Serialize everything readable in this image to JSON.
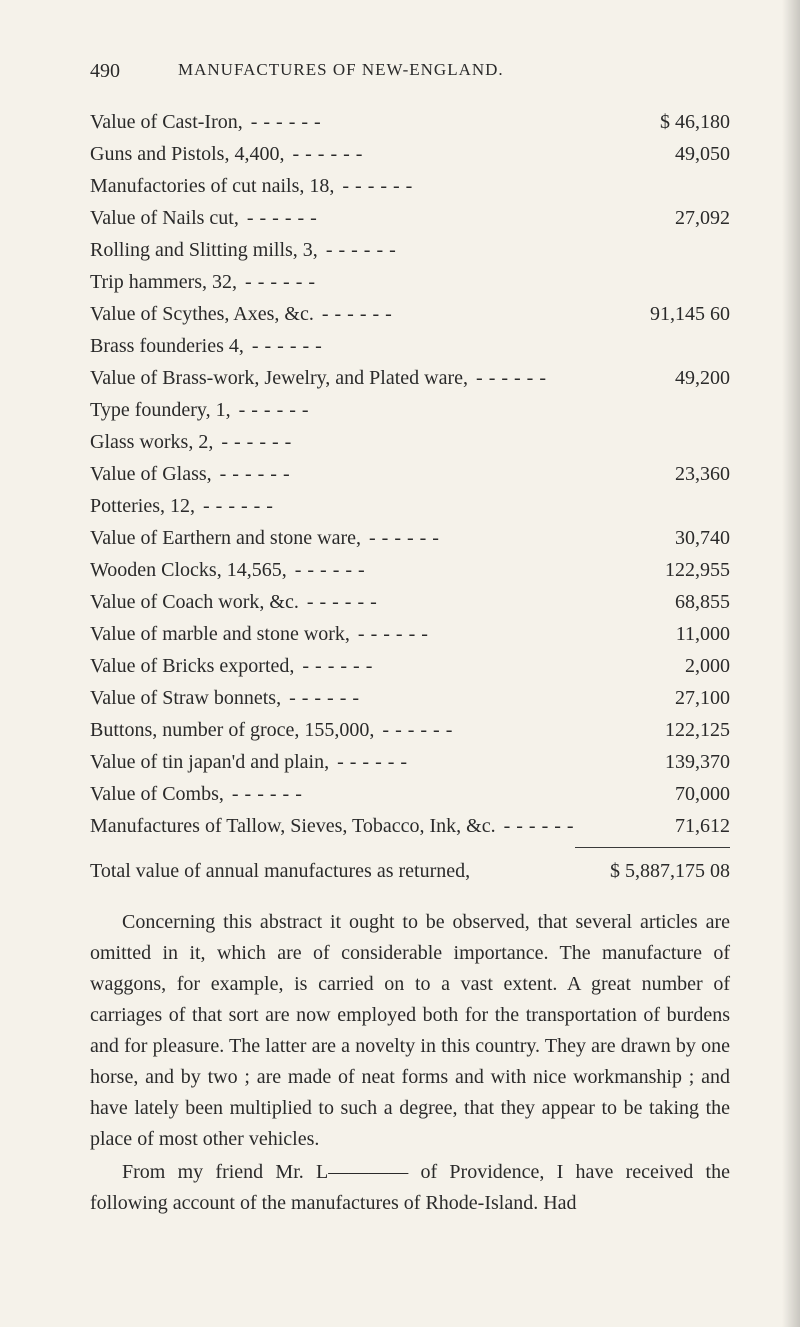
{
  "page_number": "490",
  "page_title": "MANUFACTURES OF NEW-ENGLAND.",
  "entries": [
    {
      "label": "Value of Cast-Iron,",
      "value": "$ 46,180"
    },
    {
      "label": "Guns and Pistols, 4,400,",
      "value": "49,050"
    },
    {
      "label": "Manufactories of cut nails, 18,",
      "value": ""
    },
    {
      "label": "Value of Nails cut,",
      "value": "27,092"
    },
    {
      "label": "Rolling and Slitting mills, 3,",
      "value": ""
    },
    {
      "label": "Trip hammers, 32,",
      "value": ""
    },
    {
      "label": "Value of Scythes, Axes, &c.",
      "value": "91,145 60"
    },
    {
      "label": "Brass founderies 4,",
      "value": ""
    },
    {
      "label": "Value of Brass-work, Jewelry, and Plated ware,",
      "value": "49,200"
    },
    {
      "label": "Type foundery, 1,",
      "value": ""
    },
    {
      "label": "Glass works, 2,",
      "value": ""
    },
    {
      "label": "Value of Glass,",
      "value": "23,360"
    },
    {
      "label": "Potteries, 12,",
      "value": ""
    },
    {
      "label": "Value of Earthern and stone ware,",
      "value": "30,740"
    },
    {
      "label": "Wooden Clocks, 14,565,",
      "value": "122,955"
    },
    {
      "label": "Value of Coach work, &c.",
      "value": "68,855"
    },
    {
      "label": "Value of marble and stone work,",
      "value": "11,000"
    },
    {
      "label": "Value of Bricks exported,",
      "value": "2,000"
    },
    {
      "label": "Value of Straw bonnets,",
      "value": "27,100"
    },
    {
      "label": "Buttons, number of groce, 155,000,",
      "value": "122,125"
    },
    {
      "label": "Value of tin japan'd and plain,",
      "value": "139,370"
    },
    {
      "label": "Value of Combs,",
      "value": "70,000"
    },
    {
      "label": "Manufactures of Tallow, Sieves, Tobacco, Ink, &c.",
      "value": "71,612"
    }
  ],
  "total": {
    "label": "Total value of annual manufactures as returned,",
    "value": "$ 5,887,175 08"
  },
  "paragraphs": [
    "Concerning this abstract it ought to be observed, that several articles are omitted in it, which are of considerable importance. The manufacture of waggons, for example, is carried on to a vast extent. A great number of carriages of that sort are now employed both for the transportation of burdens and for pleasure. The latter are a novelty in this country. They are drawn by one horse, and by two ; are made of neat forms and with nice workmanship ; and have lately been multiplied to such a degree, that they appear to be taking the place of most other vehicles.",
    "From my friend Mr. L———— of Providence, I have received the following account of the manufactures of Rhode-Island. Had"
  ]
}
